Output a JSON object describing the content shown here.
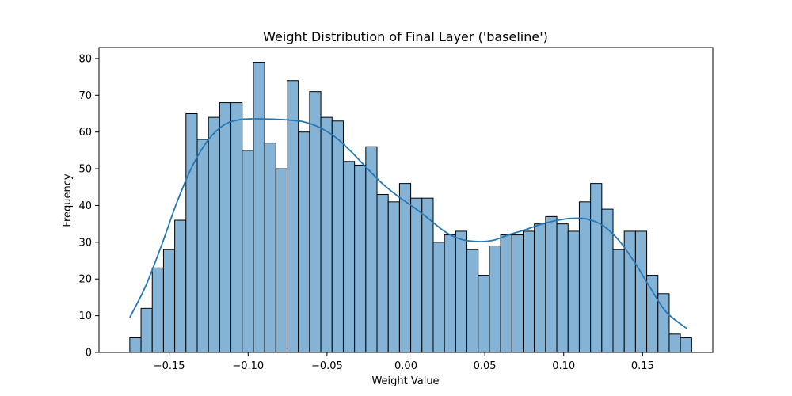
{
  "chart_data": {
    "type": "bar",
    "title": "Weight Distribution of Final Layer ('baseline')",
    "xlabel": "Weight Value",
    "ylabel": "Frequency",
    "xlim": [
      -0.1945,
      0.1945
    ],
    "ylim": [
      0,
      83
    ],
    "x_ticks": [
      -0.15,
      -0.1,
      -0.05,
      0.0,
      0.05,
      0.1,
      0.15
    ],
    "x_tick_labels": [
      "−0.15",
      "−0.10",
      "−0.05",
      "0.00",
      "0.05",
      "0.10",
      "0.15"
    ],
    "y_ticks": [
      0,
      10,
      20,
      30,
      40,
      50,
      60,
      70,
      80
    ],
    "y_tick_labels": [
      "0",
      "10",
      "20",
      "30",
      "40",
      "50",
      "60",
      "70",
      "80"
    ],
    "bins": {
      "start": -0.175,
      "width": 0.0071224,
      "counts": [
        4,
        12,
        23,
        28,
        36,
        65,
        58,
        64,
        68,
        68,
        55,
        79,
        57,
        50,
        74,
        60,
        71,
        64,
        63,
        52,
        51,
        56,
        43,
        41,
        46,
        42,
        42,
        30,
        32,
        33,
        28,
        21,
        29,
        32,
        32,
        33,
        35,
        37,
        35,
        33,
        41,
        46,
        39,
        28,
        33,
        33,
        21,
        16,
        5,
        4
      ]
    },
    "kde": {
      "x": [
        -0.175,
        -0.165,
        -0.155,
        -0.145,
        -0.135,
        -0.125,
        -0.115,
        -0.105,
        -0.095,
        -0.085,
        -0.075,
        -0.065,
        -0.055,
        -0.045,
        -0.035,
        -0.025,
        -0.015,
        -0.005,
        0.005,
        0.015,
        0.025,
        0.035,
        0.045,
        0.055,
        0.065,
        0.075,
        0.085,
        0.095,
        0.105,
        0.115,
        0.125,
        0.135,
        0.145,
        0.155,
        0.165,
        0.178
      ],
      "y": [
        9.5,
        18,
        29,
        41,
        51,
        58,
        62,
        63.4,
        63.6,
        63.5,
        63.3,
        62.8,
        61.3,
        58.7,
        54.8,
        50.3,
        46,
        42.5,
        39.5,
        36.2,
        32.8,
        30.8,
        30.2,
        30.5,
        32,
        33.3,
        34.8,
        35.9,
        36.5,
        36.3,
        34.5,
        30.5,
        24.5,
        17.5,
        11,
        6.5
      ]
    },
    "colors": {
      "bar_fill": "#84b3d6",
      "bar_edge": "#000000",
      "kde_line": "#2677b4"
    },
    "grid": false,
    "legend": "none"
  }
}
